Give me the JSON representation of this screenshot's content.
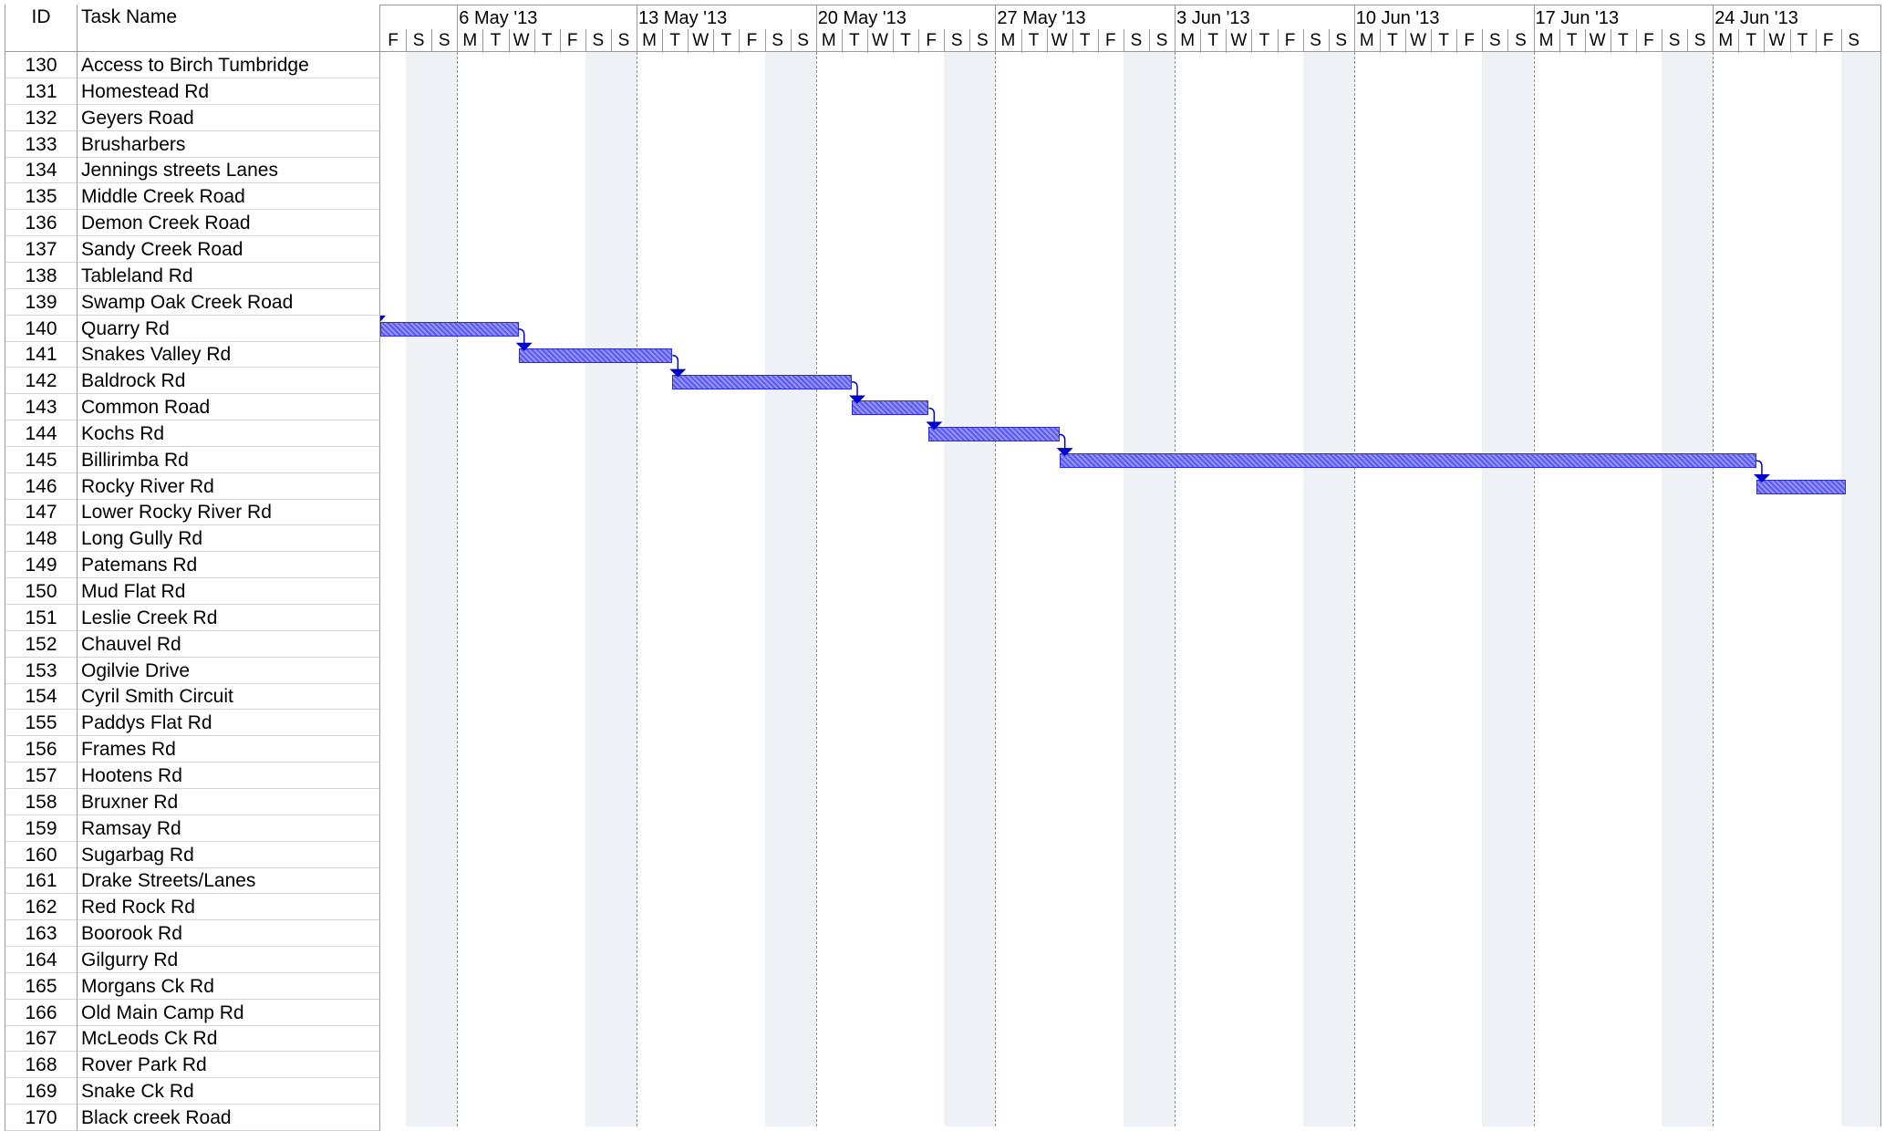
{
  "table": {
    "id_header": "ID",
    "name_header": "Task Name",
    "rows": [
      {
        "id": "130",
        "name": "Access to Birch Tumbridge"
      },
      {
        "id": "131",
        "name": "Homestead Rd"
      },
      {
        "id": "132",
        "name": "Geyers Road"
      },
      {
        "id": "133",
        "name": "Brusharbers"
      },
      {
        "id": "134",
        "name": "Jennings streets Lanes"
      },
      {
        "id": "135",
        "name": "Middle Creek Road"
      },
      {
        "id": "136",
        "name": "Demon Creek Road"
      },
      {
        "id": "137",
        "name": "Sandy Creek Road"
      },
      {
        "id": "138",
        "name": "Tableland Rd"
      },
      {
        "id": "139",
        "name": "Swamp Oak Creek Road"
      },
      {
        "id": "140",
        "name": "Quarry Rd"
      },
      {
        "id": "141",
        "name": "Snakes Valley Rd"
      },
      {
        "id": "142",
        "name": "Baldrock Rd"
      },
      {
        "id": "143",
        "name": "Common Road"
      },
      {
        "id": "144",
        "name": "Kochs Rd"
      },
      {
        "id": "145",
        "name": "Billirimba Rd"
      },
      {
        "id": "146",
        "name": "Rocky River Rd"
      },
      {
        "id": "147",
        "name": "Lower Rocky River Rd"
      },
      {
        "id": "148",
        "name": "Long Gully Rd"
      },
      {
        "id": "149",
        "name": "Patemans Rd"
      },
      {
        "id": "150",
        "name": "Mud Flat Rd"
      },
      {
        "id": "151",
        "name": "Leslie Creek Rd"
      },
      {
        "id": "152",
        "name": "Chauvel Rd"
      },
      {
        "id": "153",
        "name": "Ogilvie Drive"
      },
      {
        "id": "154",
        "name": "Cyril Smith Circuit"
      },
      {
        "id": "155",
        "name": "Paddys Flat Rd"
      },
      {
        "id": "156",
        "name": "Frames Rd"
      },
      {
        "id": "157",
        "name": "Hootens Rd"
      },
      {
        "id": "158",
        "name": "Bruxner Rd"
      },
      {
        "id": "159",
        "name": "Ramsay Rd"
      },
      {
        "id": "160",
        "name": "Sugarbag Rd"
      },
      {
        "id": "161",
        "name": "Drake Streets/Lanes"
      },
      {
        "id": "162",
        "name": "Red Rock Rd"
      },
      {
        "id": "163",
        "name": "Boorook Rd"
      },
      {
        "id": "164",
        "name": "Gilgurry Rd"
      },
      {
        "id": "165",
        "name": "Morgans Ck Rd"
      },
      {
        "id": "166",
        "name": "Old Main Camp Rd"
      },
      {
        "id": "167",
        "name": "McLeods Ck Rd"
      },
      {
        "id": "168",
        "name": "Rover Park Rd"
      },
      {
        "id": "169",
        "name": "Snake Ck Rd"
      },
      {
        "id": "170",
        "name": "Black creek Road"
      }
    ]
  },
  "timescale": {
    "weeks": [
      "6 May '13",
      "13 May '13",
      "20 May '13",
      "27 May '13",
      "3 Jun '13",
      "10 Jun '13",
      "17 Jun '13",
      "24 Jun '13"
    ],
    "days": [
      "F",
      "S",
      "S",
      "M",
      "T",
      "W",
      "T",
      "F",
      "S",
      "S",
      "M",
      "T",
      "W",
      "T",
      "F",
      "S",
      "S",
      "M",
      "T",
      "W",
      "T",
      "F",
      "S",
      "S",
      "M",
      "T",
      "W",
      "T",
      "F",
      "S",
      "S",
      "M",
      "T",
      "W",
      "T",
      "F",
      "S",
      "S",
      "M",
      "T",
      "W",
      "T",
      "F",
      "S",
      "S",
      "M",
      "T",
      "W",
      "T",
      "F",
      "S",
      "S",
      "M",
      "T",
      "W",
      "T",
      "F",
      "S"
    ]
  },
  "colors": {
    "bar": "#5a5af2",
    "link": "#0000cc",
    "weekend": "#eef1f6"
  },
  "gantt": {
    "first_day": "3 May '13",
    "tasks": [
      {
        "id": "140",
        "start_day": 0.0,
        "duration_days": 5.4,
        "incoming_link": true
      },
      {
        "id": "141",
        "start_day": 5.4,
        "duration_days": 6.0
      },
      {
        "id": "142",
        "start_day": 11.4,
        "duration_days": 7.0
      },
      {
        "id": "143",
        "start_day": 18.4,
        "duration_days": 3.0
      },
      {
        "id": "144",
        "start_day": 21.4,
        "duration_days": 5.1
      },
      {
        "id": "145",
        "start_day": 26.5,
        "duration_days": 27.2
      },
      {
        "id": "146",
        "start_day": 53.7,
        "duration_days": 3.5
      }
    ]
  }
}
